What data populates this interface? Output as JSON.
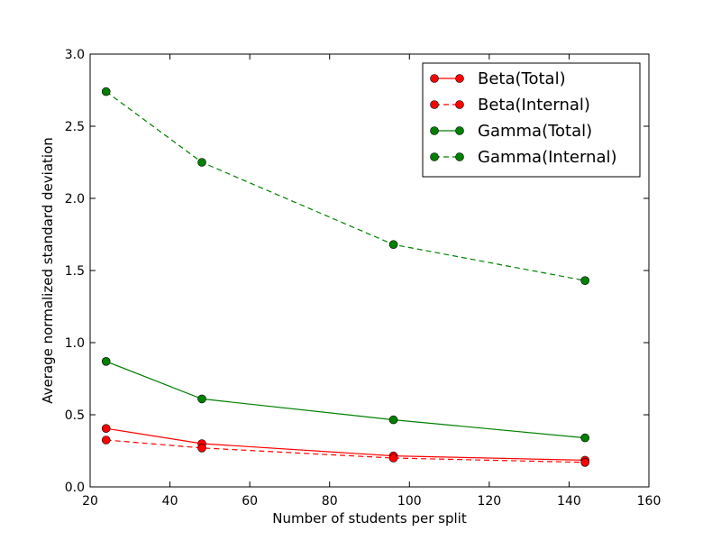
{
  "chart_data": {
    "type": "line",
    "title": "",
    "xlabel": "Number of students per split",
    "ylabel": "Average normalized standard deviation",
    "xlim": [
      20,
      160
    ],
    "ylim": [
      0.0,
      3.0
    ],
    "xticks": [
      "20",
      "40",
      "60",
      "80",
      "100",
      "120",
      "140",
      "160"
    ],
    "yticks": [
      "0.0",
      "0.5",
      "1.0",
      "1.5",
      "2.0",
      "2.5",
      "3.0"
    ],
    "grid": false,
    "legend_position": "top-right",
    "series": [
      {
        "name": "Beta(Total)",
        "color": "#ff0000",
        "style": "solid",
        "marker_color": "#ff0000",
        "x": [
          24,
          48,
          96,
          144
        ],
        "y": [
          0.405,
          0.3,
          0.215,
          0.185
        ]
      },
      {
        "name": "Beta(Internal)",
        "color": "#ff0000",
        "style": "dashed",
        "marker_color": "#ff0000",
        "x": [
          24,
          48,
          96,
          144
        ],
        "y": [
          0.325,
          0.27,
          0.2,
          0.17
        ]
      },
      {
        "name": "Gamma(Total)",
        "color": "#008000",
        "style": "solid",
        "marker_color": "#008000",
        "x": [
          24,
          48,
          96,
          144
        ],
        "y": [
          0.87,
          0.61,
          0.465,
          0.34
        ]
      },
      {
        "name": "Gamma(Internal)",
        "color": "#008000",
        "style": "dashed",
        "marker_color": "#008000",
        "x": [
          24,
          48,
          96,
          144
        ],
        "y": [
          2.74,
          2.25,
          1.68,
          1.43
        ]
      }
    ]
  }
}
